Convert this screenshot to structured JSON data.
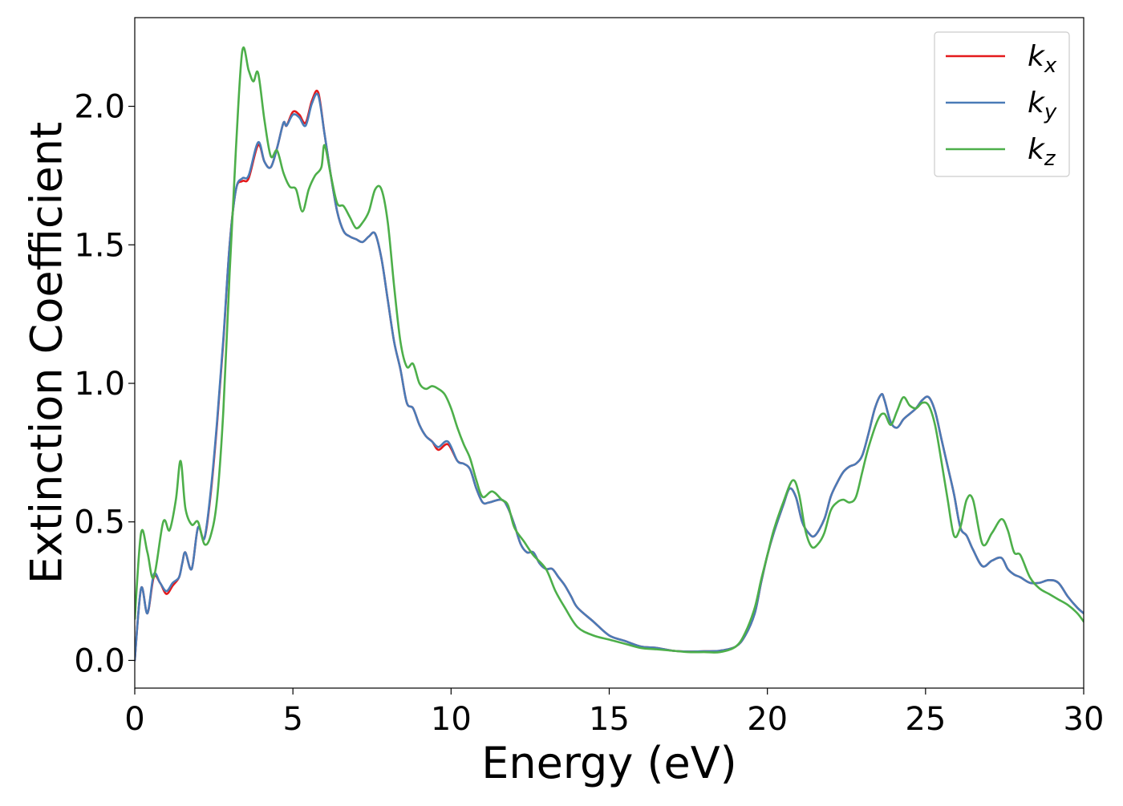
{
  "chart_data": {
    "type": "line",
    "title": "",
    "xlabel": "Energy (eV)",
    "ylabel": "Extinction Coefficient",
    "xlim": [
      0,
      30
    ],
    "ylim": [
      -0.1,
      2.32
    ],
    "xticks": [
      0,
      5,
      10,
      15,
      20,
      25,
      30
    ],
    "xtick_labels": [
      "0",
      "5",
      "10",
      "15",
      "20",
      "25",
      "30"
    ],
    "yticks": [
      0.0,
      0.5,
      1.0,
      1.5,
      2.0
    ],
    "ytick_labels": [
      "0.0",
      "0.5",
      "1.0",
      "1.5",
      "2.0"
    ],
    "grid": false,
    "legend_position": "top-right",
    "series": [
      {
        "name": "k_x",
        "legend_base": "k",
        "legend_sub": "x",
        "color": "#e41a1c",
        "x": [
          0.0,
          0.2,
          0.4,
          0.6,
          0.8,
          1.0,
          1.2,
          1.4,
          1.5,
          1.6,
          1.8,
          2.0,
          2.2,
          2.4,
          2.6,
          2.8,
          3.0,
          3.2,
          3.4,
          3.6,
          3.9,
          4.1,
          4.3,
          4.5,
          4.7,
          4.8,
          5.0,
          5.2,
          5.4,
          5.6,
          5.8,
          6.0,
          6.2,
          6.4,
          6.6,
          6.8,
          7.0,
          7.2,
          7.4,
          7.6,
          7.8,
          8.0,
          8.2,
          8.4,
          8.6,
          8.8,
          9.0,
          9.2,
          9.4,
          9.6,
          9.9,
          10.2,
          10.4,
          10.6,
          10.8,
          11.0,
          11.2,
          11.6,
          11.8,
          12.0,
          12.2,
          12.4,
          12.6,
          12.8,
          13.0,
          13.2,
          13.4,
          13.6,
          13.8,
          14.0,
          14.5,
          15.0,
          15.5,
          16.0,
          16.5,
          17.0,
          17.5,
          18.0,
          18.5,
          19.0,
          19.3,
          19.6,
          19.8,
          20.0,
          20.2,
          20.5,
          20.7,
          20.9,
          21.1,
          21.3,
          21.5,
          21.8,
          22.0,
          22.2,
          22.4,
          22.6,
          22.8,
          23.0,
          23.2,
          23.4,
          23.6,
          23.7,
          23.9,
          24.1,
          24.3,
          24.5,
          24.7,
          24.9,
          25.1,
          25.3,
          25.5,
          25.7,
          25.9,
          26.1,
          26.3,
          26.5,
          26.8,
          27.1,
          27.4,
          27.6,
          27.8,
          28.0,
          28.3,
          28.6,
          28.9,
          29.2,
          29.5,
          29.8,
          30.0
        ],
        "y": [
          0.0,
          0.26,
          0.17,
          0.3,
          0.28,
          0.24,
          0.27,
          0.3,
          0.35,
          0.39,
          0.33,
          0.48,
          0.44,
          0.6,
          0.85,
          1.15,
          1.5,
          1.7,
          1.73,
          1.74,
          1.86,
          1.8,
          1.78,
          1.85,
          1.94,
          1.93,
          1.98,
          1.97,
          1.94,
          2.02,
          2.05,
          1.9,
          1.75,
          1.62,
          1.55,
          1.53,
          1.52,
          1.51,
          1.53,
          1.54,
          1.45,
          1.3,
          1.15,
          1.05,
          0.93,
          0.91,
          0.85,
          0.81,
          0.79,
          0.76,
          0.78,
          0.72,
          0.71,
          0.69,
          0.62,
          0.57,
          0.57,
          0.58,
          0.55,
          0.49,
          0.42,
          0.39,
          0.39,
          0.35,
          0.33,
          0.33,
          0.3,
          0.27,
          0.23,
          0.19,
          0.14,
          0.09,
          0.07,
          0.05,
          0.045,
          0.035,
          0.032,
          0.033,
          0.035,
          0.05,
          0.09,
          0.17,
          0.28,
          0.38,
          0.46,
          0.56,
          0.62,
          0.59,
          0.5,
          0.46,
          0.45,
          0.51,
          0.59,
          0.64,
          0.68,
          0.7,
          0.71,
          0.74,
          0.82,
          0.91,
          0.96,
          0.94,
          0.86,
          0.84,
          0.87,
          0.89,
          0.91,
          0.94,
          0.95,
          0.9,
          0.8,
          0.7,
          0.6,
          0.48,
          0.45,
          0.4,
          0.34,
          0.36,
          0.37,
          0.33,
          0.31,
          0.3,
          0.28,
          0.28,
          0.29,
          0.28,
          0.23,
          0.19,
          0.17
        ]
      },
      {
        "name": "k_y",
        "legend_base": "k",
        "legend_sub": "y",
        "color": "#4a7bb7",
        "x": [
          0.0,
          0.2,
          0.4,
          0.6,
          0.8,
          1.0,
          1.2,
          1.4,
          1.5,
          1.6,
          1.8,
          2.0,
          2.2,
          2.4,
          2.6,
          2.8,
          3.0,
          3.2,
          3.4,
          3.6,
          3.9,
          4.1,
          4.3,
          4.5,
          4.7,
          4.8,
          5.0,
          5.2,
          5.4,
          5.6,
          5.8,
          6.0,
          6.2,
          6.4,
          6.6,
          6.8,
          7.0,
          7.2,
          7.4,
          7.6,
          7.8,
          8.0,
          8.2,
          8.4,
          8.6,
          8.8,
          9.0,
          9.2,
          9.4,
          9.6,
          9.9,
          10.2,
          10.4,
          10.6,
          10.8,
          11.0,
          11.2,
          11.6,
          11.8,
          12.0,
          12.2,
          12.4,
          12.6,
          12.8,
          13.0,
          13.2,
          13.4,
          13.6,
          13.8,
          14.0,
          14.5,
          15.0,
          15.5,
          16.0,
          16.5,
          17.0,
          17.5,
          18.0,
          18.5,
          19.0,
          19.3,
          19.6,
          19.8,
          20.0,
          20.2,
          20.5,
          20.7,
          20.9,
          21.1,
          21.3,
          21.5,
          21.8,
          22.0,
          22.2,
          22.4,
          22.6,
          22.8,
          23.0,
          23.2,
          23.4,
          23.6,
          23.7,
          23.9,
          24.1,
          24.3,
          24.5,
          24.7,
          24.9,
          25.1,
          25.3,
          25.5,
          25.7,
          25.9,
          26.1,
          26.3,
          26.5,
          26.8,
          27.1,
          27.4,
          27.6,
          27.8,
          28.0,
          28.3,
          28.6,
          28.9,
          29.2,
          29.5,
          29.8,
          30.0
        ],
        "y": [
          0.0,
          0.26,
          0.17,
          0.31,
          0.28,
          0.25,
          0.28,
          0.3,
          0.35,
          0.39,
          0.33,
          0.48,
          0.44,
          0.61,
          0.86,
          1.16,
          1.5,
          1.7,
          1.74,
          1.75,
          1.87,
          1.8,
          1.78,
          1.85,
          1.94,
          1.93,
          1.97,
          1.96,
          1.93,
          2.01,
          2.04,
          1.9,
          1.75,
          1.62,
          1.55,
          1.53,
          1.52,
          1.51,
          1.53,
          1.54,
          1.45,
          1.3,
          1.15,
          1.05,
          0.93,
          0.91,
          0.85,
          0.81,
          0.79,
          0.77,
          0.79,
          0.72,
          0.71,
          0.69,
          0.62,
          0.57,
          0.57,
          0.58,
          0.55,
          0.49,
          0.42,
          0.39,
          0.39,
          0.35,
          0.33,
          0.33,
          0.3,
          0.27,
          0.23,
          0.19,
          0.14,
          0.09,
          0.07,
          0.05,
          0.045,
          0.035,
          0.032,
          0.033,
          0.035,
          0.05,
          0.09,
          0.17,
          0.28,
          0.38,
          0.46,
          0.56,
          0.62,
          0.59,
          0.5,
          0.46,
          0.45,
          0.51,
          0.59,
          0.64,
          0.68,
          0.7,
          0.71,
          0.74,
          0.82,
          0.91,
          0.96,
          0.94,
          0.86,
          0.84,
          0.87,
          0.89,
          0.91,
          0.94,
          0.95,
          0.9,
          0.8,
          0.7,
          0.6,
          0.48,
          0.45,
          0.4,
          0.34,
          0.36,
          0.37,
          0.33,
          0.31,
          0.3,
          0.28,
          0.28,
          0.29,
          0.28,
          0.23,
          0.19,
          0.17
        ]
      },
      {
        "name": "k_z",
        "legend_base": "k",
        "legend_sub": "z",
        "color": "#4daf4a",
        "x": [
          0.0,
          0.2,
          0.4,
          0.6,
          0.9,
          1.1,
          1.3,
          1.45,
          1.6,
          1.8,
          2.0,
          2.2,
          2.4,
          2.6,
          2.8,
          3.0,
          3.2,
          3.4,
          3.6,
          3.75,
          3.9,
          4.1,
          4.3,
          4.5,
          4.7,
          4.9,
          5.1,
          5.3,
          5.5,
          5.7,
          5.9,
          6.0,
          6.2,
          6.4,
          6.6,
          6.8,
          7.0,
          7.2,
          7.4,
          7.6,
          7.8,
          8.0,
          8.2,
          8.4,
          8.6,
          8.8,
          9.0,
          9.2,
          9.4,
          9.6,
          9.8,
          10.0,
          10.2,
          10.4,
          10.6,
          10.8,
          11.0,
          11.3,
          11.6,
          11.8,
          12.0,
          12.3,
          12.6,
          13.0,
          13.3,
          13.6,
          14.0,
          14.5,
          15.0,
          15.5,
          16.0,
          16.5,
          17.0,
          17.5,
          18.0,
          18.5,
          19.0,
          19.3,
          19.6,
          19.8,
          20.0,
          20.2,
          20.5,
          20.8,
          21.0,
          21.2,
          21.4,
          21.6,
          21.8,
          22.0,
          22.2,
          22.4,
          22.6,
          22.8,
          23.0,
          23.2,
          23.5,
          23.7,
          23.9,
          24.1,
          24.3,
          24.5,
          24.7,
          24.9,
          25.1,
          25.3,
          25.5,
          25.7,
          25.9,
          26.1,
          26.3,
          26.5,
          26.8,
          27.1,
          27.4,
          27.6,
          27.8,
          28.0,
          28.3,
          28.6,
          28.9,
          29.2,
          29.5,
          29.8,
          30.0
        ],
        "y": [
          0.15,
          0.46,
          0.39,
          0.3,
          0.5,
          0.47,
          0.58,
          0.72,
          0.55,
          0.49,
          0.5,
          0.42,
          0.45,
          0.58,
          0.9,
          1.4,
          1.85,
          2.2,
          2.13,
          2.09,
          2.12,
          1.95,
          1.82,
          1.84,
          1.76,
          1.71,
          1.7,
          1.62,
          1.7,
          1.75,
          1.78,
          1.86,
          1.75,
          1.65,
          1.64,
          1.6,
          1.56,
          1.58,
          1.62,
          1.7,
          1.7,
          1.58,
          1.35,
          1.15,
          1.06,
          1.07,
          1.0,
          0.98,
          0.99,
          0.98,
          0.96,
          0.91,
          0.84,
          0.78,
          0.73,
          0.65,
          0.59,
          0.61,
          0.58,
          0.56,
          0.48,
          0.43,
          0.38,
          0.33,
          0.25,
          0.19,
          0.12,
          0.09,
          0.075,
          0.06,
          0.045,
          0.04,
          0.035,
          0.03,
          0.03,
          0.03,
          0.05,
          0.1,
          0.19,
          0.29,
          0.38,
          0.47,
          0.57,
          0.65,
          0.6,
          0.47,
          0.41,
          0.42,
          0.46,
          0.54,
          0.57,
          0.58,
          0.57,
          0.59,
          0.68,
          0.77,
          0.87,
          0.89,
          0.85,
          0.9,
          0.95,
          0.92,
          0.91,
          0.93,
          0.92,
          0.85,
          0.72,
          0.58,
          0.45,
          0.48,
          0.58,
          0.58,
          0.42,
          0.46,
          0.51,
          0.47,
          0.39,
          0.38,
          0.3,
          0.26,
          0.24,
          0.22,
          0.2,
          0.17,
          0.14
        ]
      }
    ]
  }
}
